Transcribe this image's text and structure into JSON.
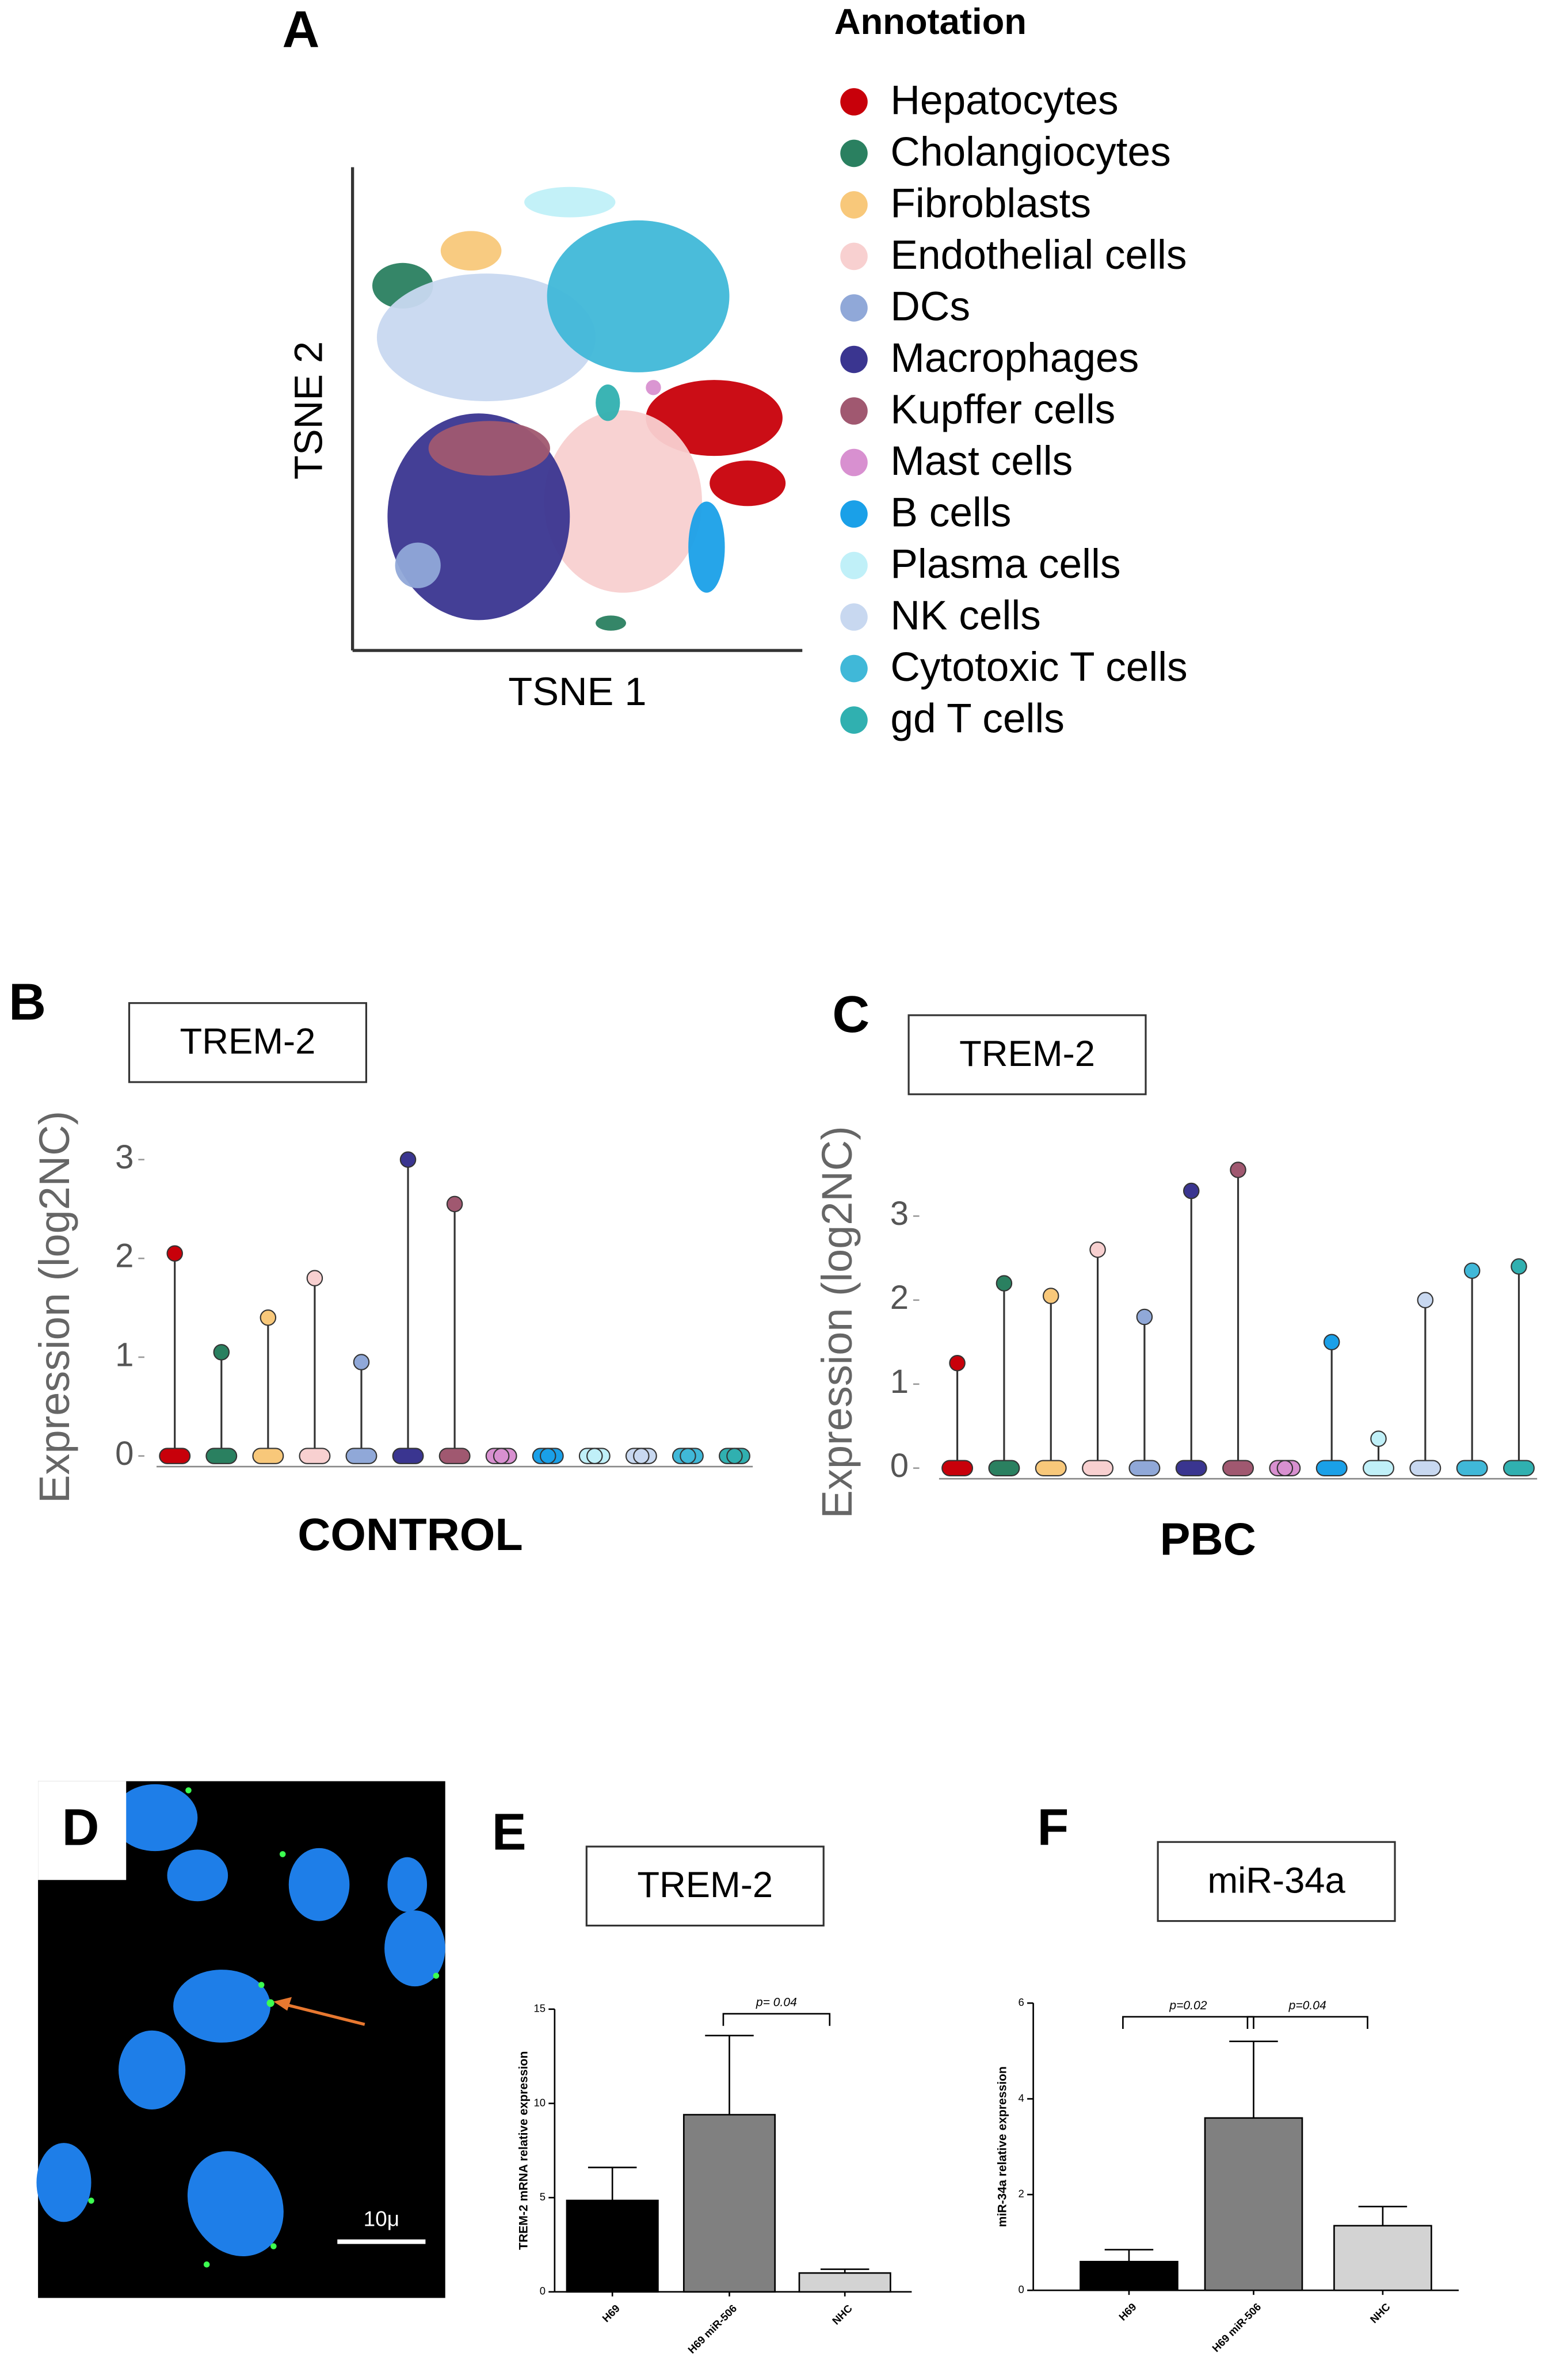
{
  "panels": [
    "A",
    "B",
    "C",
    "D",
    "E",
    "F"
  ],
  "image_d": {
    "scale_bar": "10μ"
  },
  "chart_data": [
    {
      "type": "tsne",
      "xlabel": "TSNE 1",
      "ylabel": "TSNE 2",
      "legend_title": "Annotation",
      "series": [
        {
          "name": "Hepatocytes",
          "color": "#c8000a"
        },
        {
          "name": "Cholangiocytes",
          "color": "#2a8060"
        },
        {
          "name": "Fibroblasts",
          "color": "#f8c87a"
        },
        {
          "name": "Endothelial cells",
          "color": "#f8d0d0"
        },
        {
          "name": "DCs",
          "color": "#90a8d8"
        },
        {
          "name": "Macrophages",
          "color": "#3a3590"
        },
        {
          "name": "Kupffer cells",
          "color": "#a05870"
        },
        {
          "name": "Mast cells",
          "color": "#d890d0"
        },
        {
          "name": "B cells",
          "color": "#1aa0e8"
        },
        {
          "name": "Plasma cells",
          "color": "#c0f0f8"
        },
        {
          "name": "NK cells",
          "color": "#c8d8f0"
        },
        {
          "name": "Cytotoxic T cells",
          "color": "#40b8d8"
        },
        {
          "name": "gd T cells",
          "color": "#30b0b0"
        }
      ]
    },
    {
      "type": "strip",
      "label": "TREM-2",
      "title": "CONTROL",
      "ylabel": "Expression (log2NC)",
      "ylim": [
        0,
        3.1
      ],
      "yticks": [
        0,
        1,
        2,
        3
      ],
      "colors": [
        "#c8000a",
        "#2a8060",
        "#f8c87a",
        "#f8d0d0",
        "#90a8d8",
        "#3a3590",
        "#a05870",
        "#d890d0",
        "#1aa0e8",
        "#c0f0f8",
        "#c8d8f0",
        "#40b8d8",
        "#30b0b0"
      ],
      "values": [
        2.05,
        1.05,
        1.4,
        1.8,
        0.95,
        3.0,
        2.55,
        0,
        0,
        0,
        0,
        0,
        0
      ]
    },
    {
      "type": "strip",
      "label": "TREM-2",
      "title": "PBC",
      "ylabel": "Expression (log2NC)",
      "ylim": [
        0,
        3.6
      ],
      "yticks": [
        0,
        1,
        2,
        3
      ],
      "colors": [
        "#c8000a",
        "#2a8060",
        "#f8c87a",
        "#f8d0d0",
        "#90a8d8",
        "#3a3590",
        "#a05870",
        "#d890d0",
        "#1aa0e8",
        "#c0f0f8",
        "#c8d8f0",
        "#40b8d8",
        "#30b0b0"
      ],
      "values": [
        1.25,
        2.2,
        2.05,
        2.6,
        1.8,
        3.3,
        3.55,
        0,
        1.5,
        0.35,
        2.0,
        2.35,
        2.4
      ]
    },
    {
      "type": "bar",
      "label": "TREM-2",
      "ylabel": "TREM-2 mRNA relative expression",
      "ylim": [
        0,
        15
      ],
      "yticks": [
        0,
        5,
        10,
        15
      ],
      "categories": [
        "H69",
        "H69 miR-506",
        "NHC"
      ],
      "values": [
        4.85,
        9.4,
        1.0
      ],
      "errors": [
        1.75,
        4.2,
        0.2
      ],
      "colors": [
        "#000000",
        "#808080",
        "#d3d3d3"
      ],
      "annotations": [
        "p= 0.04"
      ]
    },
    {
      "type": "bar",
      "label": "miR-34a",
      "ylabel": "miR-34a relative expression",
      "ylim": [
        0,
        6
      ],
      "yticks": [
        0,
        2,
        4,
        6
      ],
      "categories": [
        "H69",
        "H69 miR-506",
        "NHC"
      ],
      "values": [
        0.6,
        3.6,
        1.35
      ],
      "errors": [
        0.25,
        1.6,
        0.4
      ],
      "colors": [
        "#000000",
        "#808080",
        "#d3d3d3"
      ],
      "annotations": [
        "p=0.02",
        "p=0.04"
      ]
    }
  ]
}
